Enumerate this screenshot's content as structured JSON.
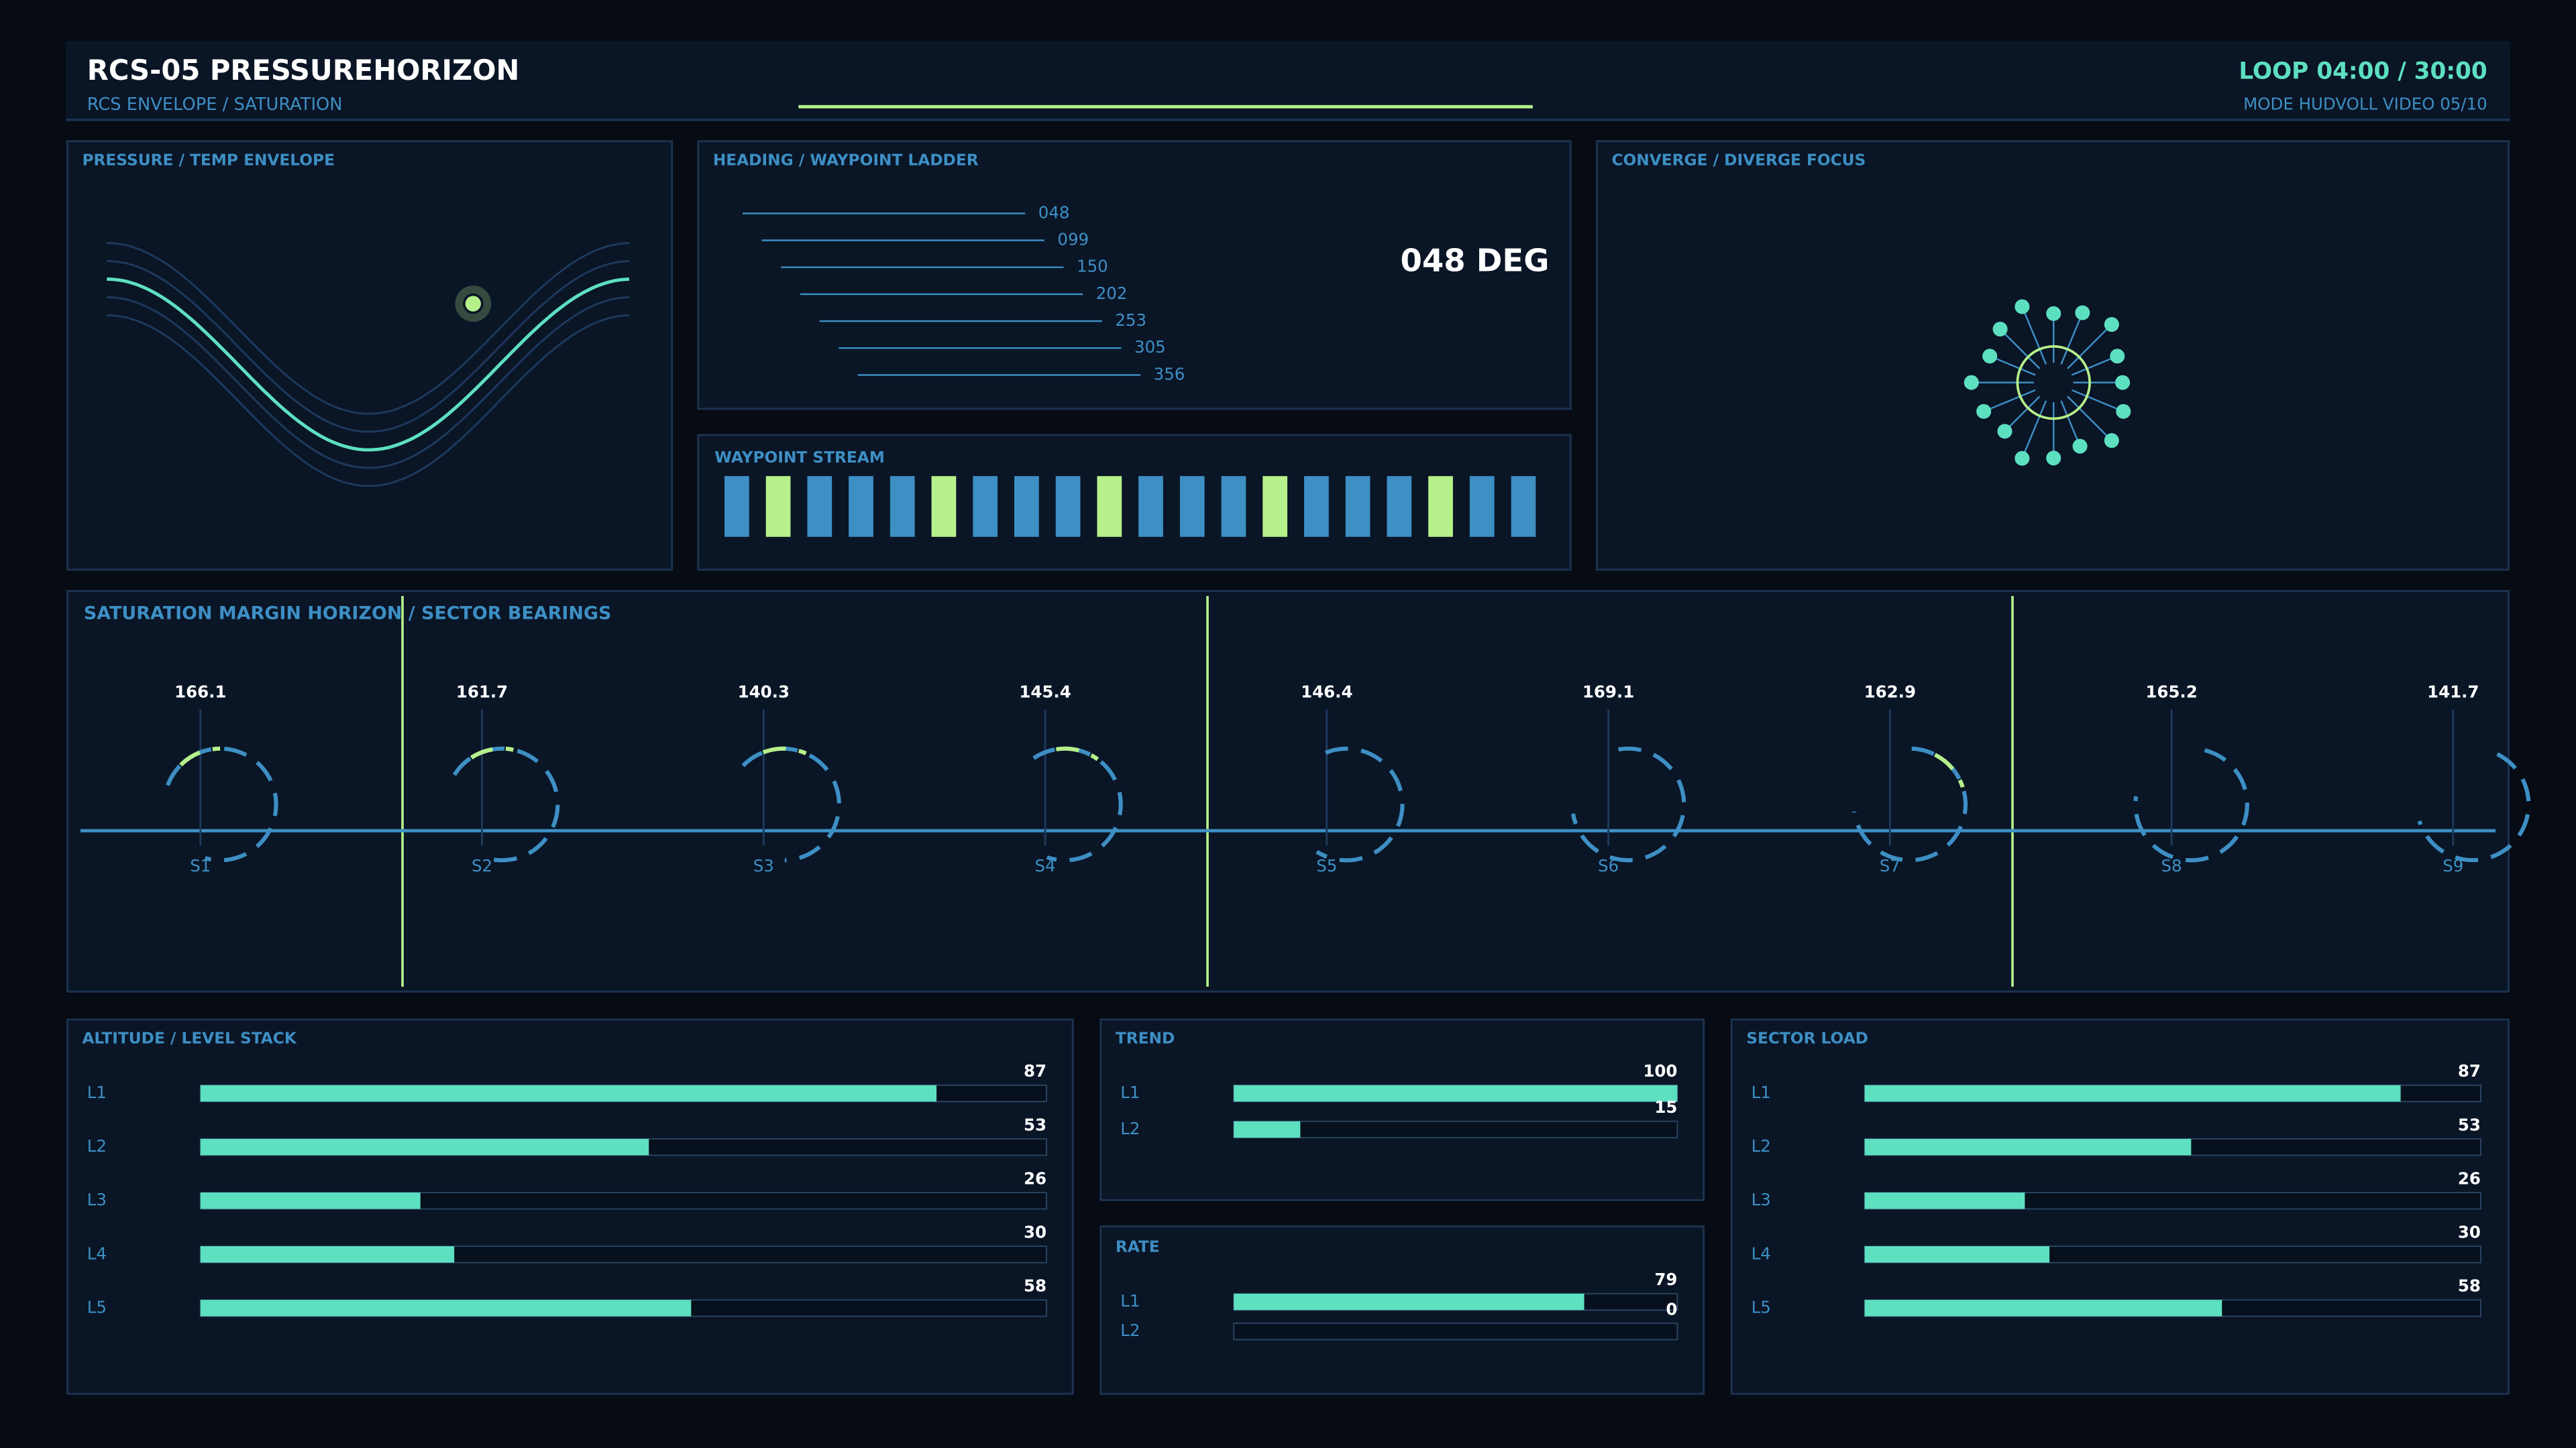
{
  "header": {
    "title": "RCS-05  PRESSUREHORIZON",
    "subtitle": "RCS ENVELOPE / SATURATION",
    "loop": "LOOP 04:00 / 30:00",
    "mode": "MODE HUDVOLL  VIDEO 05/10"
  },
  "envelope": {
    "title": "PRESSURE / TEMP ENVELOPE"
  },
  "heading": {
    "title": "HEADING / WAYPOINT LADDER",
    "readout": "048 DEG",
    "ladder": [
      "048",
      "099",
      "150",
      "202",
      "253",
      "305",
      "356"
    ]
  },
  "stream": {
    "title": "WAYPOINT STREAM"
  },
  "focus": {
    "title": "CONVERGE / DIVERGE FOCUS"
  },
  "sectors": {
    "title": "SATURATION MARGIN HORIZON / SECTOR BEARINGS",
    "items": [
      {
        "label": "S1",
        "value": 166.1
      },
      {
        "label": "S2",
        "value": 161.7
      },
      {
        "label": "S3",
        "value": 140.3
      },
      {
        "label": "S4",
        "value": 145.4
      },
      {
        "label": "S5",
        "value": 146.4
      },
      {
        "label": "S6",
        "value": 169.1
      },
      {
        "label": "S7",
        "value": 162.9
      },
      {
        "label": "S8",
        "value": 165.2
      },
      {
        "label": "S9",
        "value": 141.7
      }
    ]
  },
  "altitude": {
    "title": "ALTITUDE / LEVEL STACK",
    "rows": [
      {
        "label": "L1",
        "value": 87
      },
      {
        "label": "L2",
        "value": 53
      },
      {
        "label": "L3",
        "value": 26
      },
      {
        "label": "L4",
        "value": 30
      },
      {
        "label": "L5",
        "value": 58
      }
    ]
  },
  "trend": {
    "title": "TREND",
    "rows": [
      {
        "label": "L1",
        "value": 100
      },
      {
        "label": "L2",
        "value": 15
      }
    ]
  },
  "rate": {
    "title": "RATE",
    "rows": [
      {
        "label": "L1",
        "value": 79
      },
      {
        "label": "L2",
        "value": 0
      }
    ]
  },
  "load": {
    "title": "SECTOR LOAD",
    "rows": [
      {
        "label": "L1",
        "value": 87
      },
      {
        "label": "L2",
        "value": 53
      },
      {
        "label": "L3",
        "value": 26
      },
      {
        "label": "L4",
        "value": 30
      },
      {
        "label": "L5",
        "value": 58
      }
    ]
  }
}
